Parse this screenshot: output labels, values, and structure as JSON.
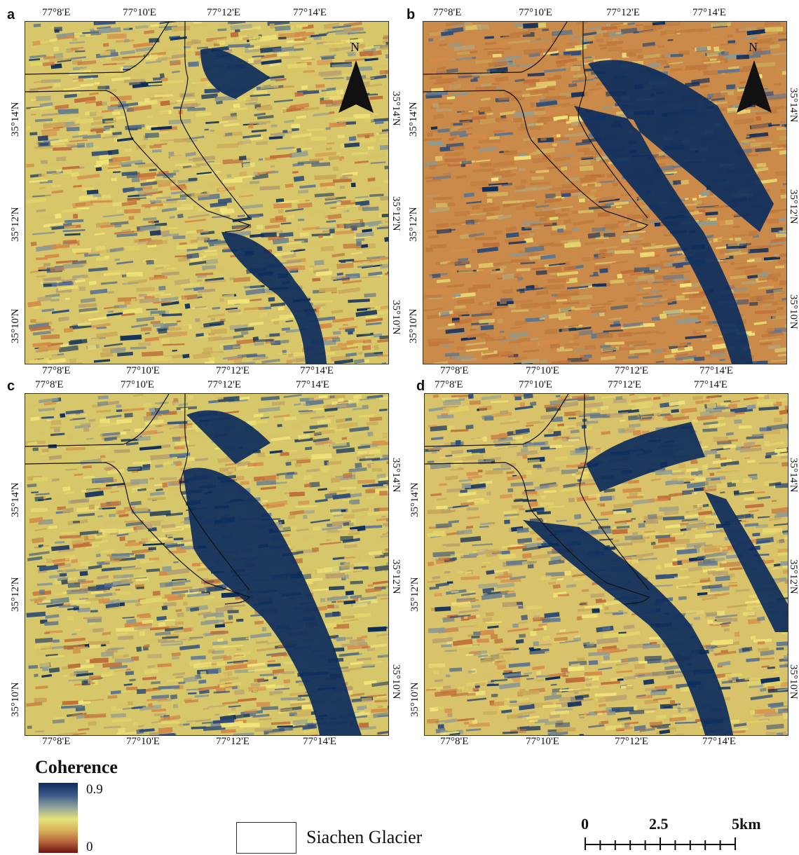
{
  "panels": [
    {
      "letter": "a",
      "top_lon": [
        "77°8'E",
        "77°10'E",
        "77°12'E",
        "77°14'E"
      ],
      "bottom_lon": [
        "77°8'E",
        "77°10'E",
        "77°12'E",
        "77°14'E"
      ],
      "left_lat": [
        "35°14'N",
        "35°12'N",
        "35°10'N"
      ],
      "right_lat": [
        "35°14'N",
        "35°12'N",
        "35°10'N"
      ],
      "north_arrow": true
    },
    {
      "letter": "b",
      "top_lon": [
        "77°8'E",
        "77°10'E",
        "77°12'E",
        "77°14'E"
      ],
      "bottom_lon": [
        "77°8'E",
        "77°10'E",
        "77°12'E",
        "77°14'E"
      ],
      "left_lat": [
        "35°14'N",
        "35°12'N",
        "35°10'N"
      ],
      "right_lat": [
        "35°14'N",
        "35°12'N",
        "35°10'N"
      ],
      "north_arrow": true
    },
    {
      "letter": "c",
      "top_lon": [
        "77°8'E",
        "77°10'E",
        "77°12'E",
        "77°14'E"
      ],
      "bottom_lon": [
        "77°8'E",
        "77°10'E",
        "77°12'E",
        "77°14'E"
      ],
      "left_lat": [
        "35°14'N",
        "35°12'N",
        "35°10'N"
      ],
      "right_lat": [
        "35°14'N",
        "35°12'N",
        "35°10'N"
      ],
      "north_arrow": false
    },
    {
      "letter": "d",
      "top_lon": [
        "77°8'E",
        "77°10'E",
        "77°12'E",
        "77°14'E"
      ],
      "bottom_lon": [
        "77°8'E",
        "77°10'E",
        "77°12'E",
        "77°14'E"
      ],
      "left_lat": [
        "35°14'N",
        "35°12'N",
        "35°10'N"
      ],
      "right_lat": [
        "35°14'N",
        "35°12'N",
        "35°10'N"
      ],
      "north_arrow": false
    }
  ],
  "north_label": "N",
  "legend": {
    "title": "Coherence",
    "max_label": "0.9",
    "min_label": "0",
    "colors": [
      "#0c2d5c",
      "#3d5a8a",
      "#8fa39a",
      "#e4e27a",
      "#d8b05a",
      "#b8653a",
      "#6e1410"
    ],
    "glacier_label": "Siachen Glacier"
  },
  "scale": {
    "labels": [
      "0",
      "2.5",
      "5km"
    ]
  },
  "panel_tints": {
    "a": {
      "base": "#d8c76a",
      "dark": "#0c2d5c",
      "warm": "#cf9a4c"
    },
    "b": {
      "base": "#c98a4a",
      "dark": "#0c2d5c",
      "warm": "#c07a3e"
    },
    "c": {
      "base": "#d6c76a",
      "dark": "#0c2d5c",
      "warm": "#d09a50"
    },
    "d": {
      "base": "#d8c26a",
      "dark": "#0c2d5c",
      "warm": "#d49a50"
    }
  }
}
